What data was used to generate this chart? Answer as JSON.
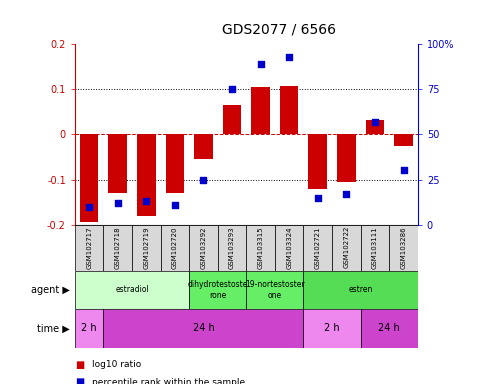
{
  "title": "GDS2077 / 6566",
  "samples": [
    "GSM102717",
    "GSM102718",
    "GSM102719",
    "GSM102720",
    "GSM103292",
    "GSM103293",
    "GSM103315",
    "GSM103324",
    "GSM102721",
    "GSM102722",
    "GSM103111",
    "GSM103286"
  ],
  "log10_ratio": [
    -0.195,
    -0.13,
    -0.18,
    -0.13,
    -0.055,
    0.065,
    0.105,
    0.108,
    -0.12,
    -0.105,
    0.032,
    -0.025
  ],
  "percentile_rank": [
    10,
    12,
    13,
    11,
    25,
    75,
    89,
    93,
    15,
    17,
    57,
    30
  ],
  "ylim": [
    -0.2,
    0.2
  ],
  "yticks_left": [
    -0.2,
    -0.1,
    0.0,
    0.1,
    0.2
  ],
  "yticks_right": [
    0,
    25,
    50,
    75,
    100
  ],
  "bar_color": "#cc0000",
  "dot_color": "#0000cc",
  "title_fontsize": 10,
  "legend_red": "log10 ratio",
  "legend_blue": "percentile rank within the sample",
  "ylabel_left_color": "#cc0000",
  "ylabel_right_color": "#0000cc",
  "agent_groups": [
    {
      "label": "estradiol",
      "start": 0,
      "end": 4,
      "color": "#ccffcc"
    },
    {
      "label": "dihydrotestoste\nrone",
      "start": 4,
      "end": 6,
      "color": "#66ee66"
    },
    {
      "label": "19-nortestoster\none",
      "start": 6,
      "end": 8,
      "color": "#66ee66"
    },
    {
      "label": "estren",
      "start": 8,
      "end": 12,
      "color": "#55dd55"
    }
  ],
  "time_groups": [
    {
      "label": "2 h",
      "start": 0,
      "end": 1,
      "color": "#ee88ee"
    },
    {
      "label": "24 h",
      "start": 1,
      "end": 8,
      "color": "#cc44cc"
    },
    {
      "label": "2 h",
      "start": 8,
      "end": 10,
      "color": "#ee88ee"
    },
    {
      "label": "24 h",
      "start": 10,
      "end": 12,
      "color": "#cc44cc"
    }
  ]
}
